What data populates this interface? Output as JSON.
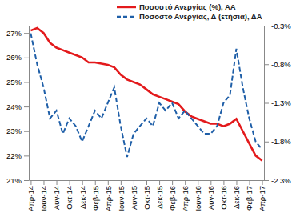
{
  "chart_data": {
    "type": "line",
    "categories": [
      "Απρ-14",
      null,
      "Ιουν-14",
      null,
      "Αυγ-14",
      null,
      "Οκτ-14",
      null,
      "Δεκ-14",
      null,
      "Φεβ-15",
      null,
      "Απρ-15",
      null,
      "Ιουν-15",
      null,
      "Αυγ-15",
      null,
      "Οκτ-15",
      null,
      "Δεκ-15",
      null,
      "Φεβ-16",
      null,
      "Απρ-16",
      null,
      "Ιουν-16",
      null,
      "Αυγ-16",
      null,
      "Οκτ-16",
      null,
      "Δεκ-16",
      null,
      "Φεβ-17",
      null,
      "Απρ-17"
    ],
    "series": [
      {
        "name": "Ποσοστό Ανεργίας (%), ΑΑ",
        "color": "#e31a1c",
        "line_style": "solid",
        "values": [
          27.1,
          27.2,
          27.0,
          26.6,
          26.4,
          26.3,
          26.2,
          26.1,
          26.0,
          25.8,
          25.8,
          25.75,
          25.7,
          25.6,
          25.3,
          25.1,
          25.0,
          24.9,
          24.7,
          24.5,
          24.4,
          24.3,
          24.2,
          24.1,
          23.8,
          23.6,
          23.5,
          23.4,
          23.3,
          23.3,
          23.2,
          23.3,
          23.5,
          23.0,
          22.5,
          22.0,
          21.8
        ]
      },
      {
        "name": "Ποσοστό Ανεργίας, Δ (ετήσια), ΔΑ",
        "color": "#1f5fa8",
        "line_style": "dashed",
        "axis": "y2",
        "values": [
          -0.4,
          -0.8,
          -1.1,
          -1.5,
          -1.4,
          -1.7,
          -1.5,
          -1.6,
          -1.8,
          -1.6,
          -1.4,
          -1.5,
          -1.3,
          -1.1,
          -1.6,
          -2.0,
          -1.7,
          -1.6,
          -1.5,
          -1.6,
          -1.3,
          -1.4,
          -1.3,
          -1.5,
          -1.4,
          -1.5,
          -1.6,
          -1.7,
          -1.7,
          -1.6,
          -1.3,
          -1.2,
          -0.6,
          -1.1,
          -1.5,
          -1.8,
          -1.9
        ]
      }
    ],
    "ylim": [
      21,
      27.3
    ],
    "yticks": [
      {
        "value": 21,
        "label": "21%"
      },
      {
        "value": 22,
        "label": "22%"
      },
      {
        "value": 23,
        "label": "23%"
      },
      {
        "value": 24,
        "label": "24%"
      },
      {
        "value": 25,
        "label": "25%"
      },
      {
        "value": 26,
        "label": "26%"
      },
      {
        "value": 27,
        "label": "27%"
      }
    ],
    "y2lim": [
      -2.3,
      -0.3
    ],
    "y2ticks": [
      {
        "value": -0.3,
        "label": "-0.3%"
      },
      {
        "value": -0.8,
        "label": "-0.8%"
      },
      {
        "value": -1.3,
        "label": "-1.3%"
      },
      {
        "value": -1.8,
        "label": "-1.8%"
      },
      {
        "value": -2.3,
        "label": "-2.3%"
      }
    ],
    "grid": false,
    "legend": "top-right"
  }
}
